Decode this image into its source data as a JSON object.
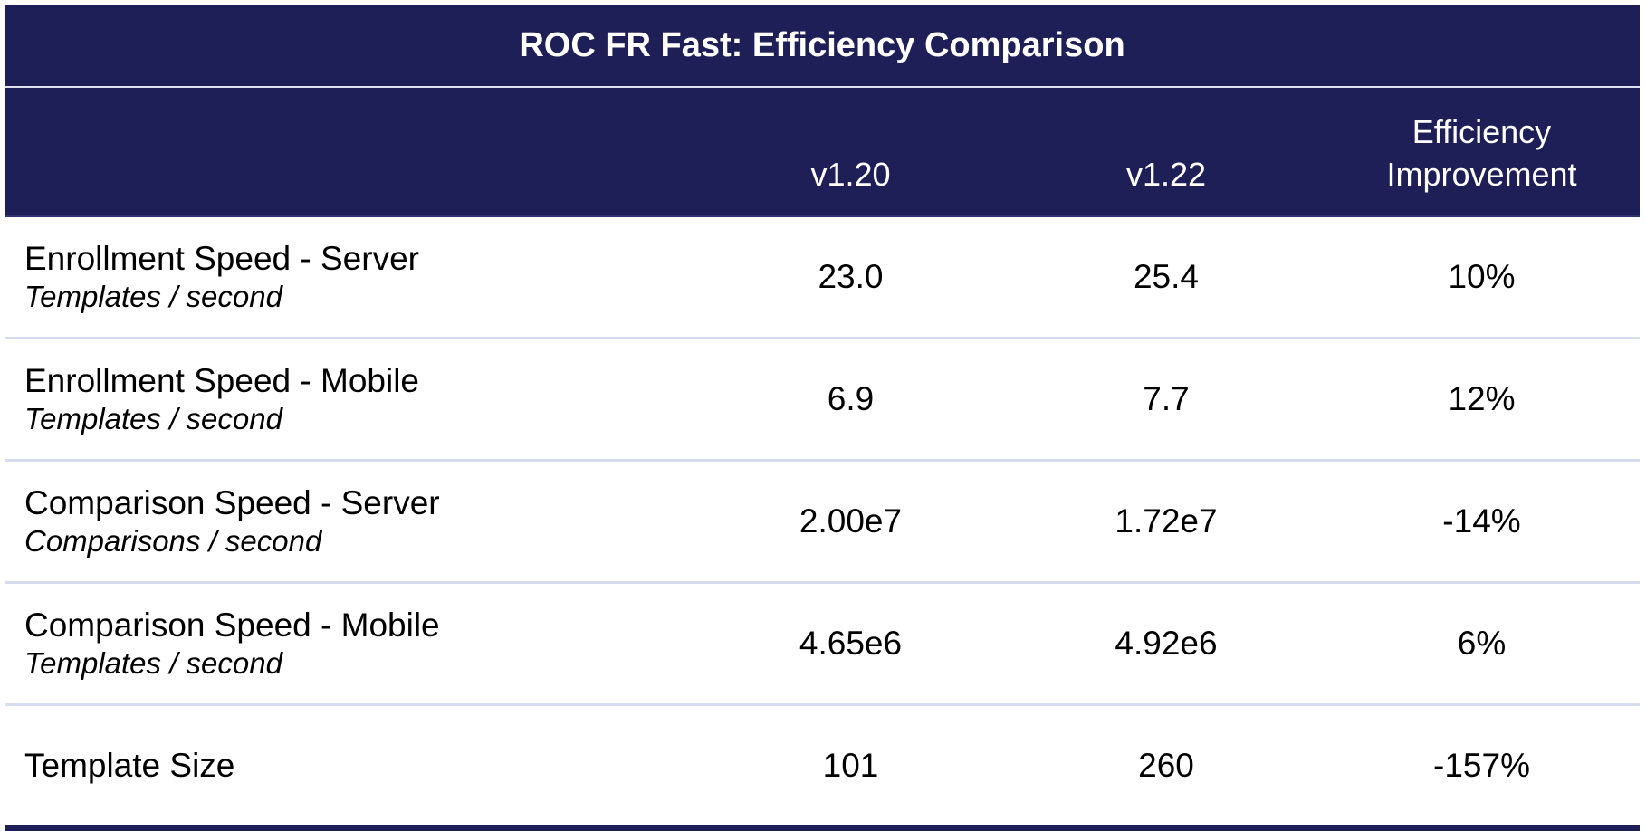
{
  "table": {
    "title": "ROC FR Fast: Efficiency Comparison",
    "headers": {
      "metric": "",
      "v120": "v1.20",
      "v122": "v1.22",
      "improvement_line1": "Efficiency",
      "improvement_line2": "Improvement"
    },
    "rows": [
      {
        "name": "Enrollment Speed - Server",
        "unit": "Templates / second",
        "v120": "23.0",
        "v122": "25.4",
        "improvement": "10%"
      },
      {
        "name": "Enrollment Speed - Mobile",
        "unit": "Templates / second",
        "v120": "6.9",
        "v122": "7.7",
        "improvement": "12%"
      },
      {
        "name": "Comparison Speed - Server",
        "unit": "Comparisons / second",
        "v120": "2.00e7",
        "v122": "1.72e7",
        "improvement": "-14%"
      },
      {
        "name": "Comparison Speed - Mobile",
        "unit": "Templates / second",
        "v120": "4.65e6",
        "v122": "4.92e6",
        "improvement": "6%"
      },
      {
        "name": "Template Size",
        "unit": "",
        "v120": "101",
        "v122": "260",
        "improvement": "-157%"
      }
    ]
  },
  "colors": {
    "header_bg": "#1f1f57",
    "header_text": "#ffffff",
    "row_divider": "#d6dcee"
  }
}
